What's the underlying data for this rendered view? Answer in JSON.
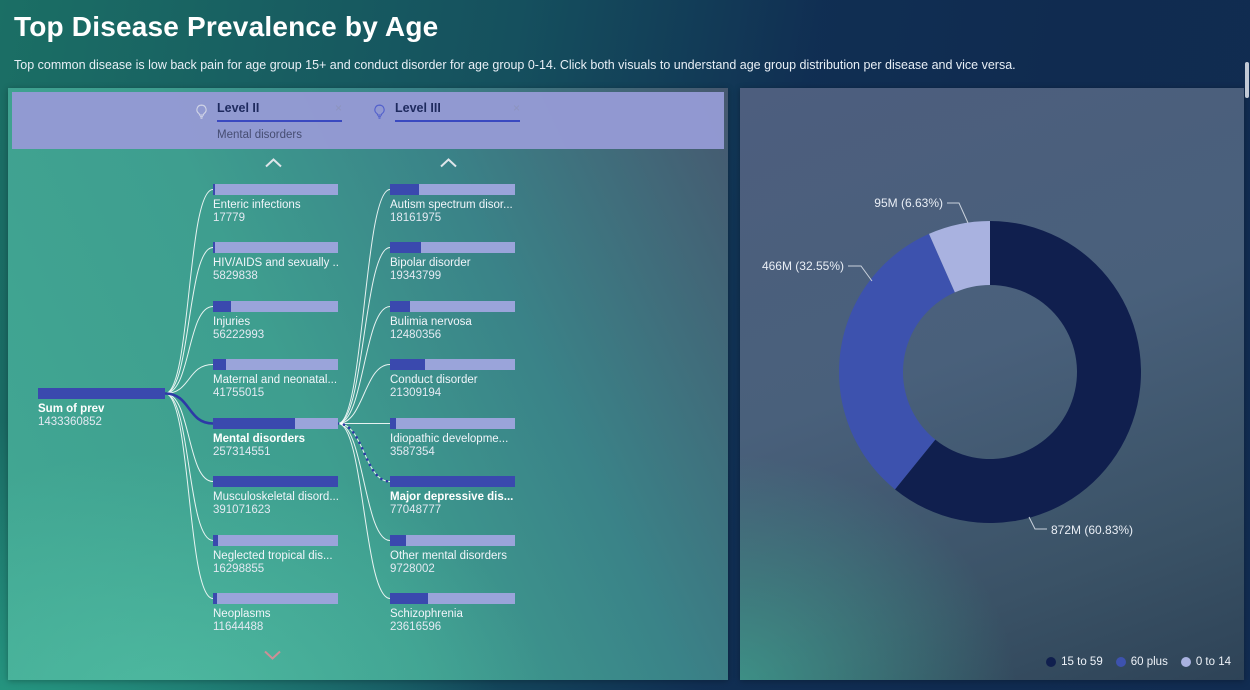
{
  "header": {
    "title": "Top Disease Prevalence by Age",
    "subtitle": "Top common disease is low back pain for age group 15+ and conduct disorder for age group 0-14. Click both visuals to understand age group distribution per disease and vice versa."
  },
  "decomposition_tree": {
    "fields": [
      {
        "label": "Level II",
        "selected_value": "Mental disorders",
        "clear_label": "×"
      },
      {
        "label": "Level III",
        "selected_value": "",
        "clear_label": "×"
      }
    ],
    "root": {
      "label": "Sum of prev",
      "value": 1433360852
    },
    "level2_nodes": [
      {
        "label": "Enteric infections",
        "value": 17779
      },
      {
        "label": "HIV/AIDS and sexually ...",
        "value": 5829838
      },
      {
        "label": "Injuries",
        "value": 56222993
      },
      {
        "label": "Maternal and neonatal...",
        "value": 41755015
      },
      {
        "label": "Mental disorders",
        "value": 257314551,
        "selected": true
      },
      {
        "label": "Musculoskeletal disord...",
        "value": 391071623
      },
      {
        "label": "Neglected tropical dis...",
        "value": 16298855
      },
      {
        "label": "Neoplasms",
        "value": 11644488
      }
    ],
    "level3_nodes": [
      {
        "label": "Autism spectrum disor...",
        "value": 18161975
      },
      {
        "label": "Bipolar disorder",
        "value": 19343799
      },
      {
        "label": "Bulimia nervosa",
        "value": 12480356
      },
      {
        "label": "Conduct disorder",
        "value": 21309194
      },
      {
        "label": "Idiopathic developme...",
        "value": 3587354
      },
      {
        "label": "Major depressive dis...",
        "value": 77048777,
        "selected": true
      },
      {
        "label": "Other mental disorders",
        "value": 9728002
      },
      {
        "label": "Schizophrenia",
        "value": 23616596
      }
    ],
    "colors": {
      "bar_fill": "#3a49ae",
      "bar_rest": "#9aa4da",
      "selected_path": "#2d3aa6"
    }
  },
  "chart_data": {
    "type": "pie",
    "variant": "donut",
    "categories": [
      "15 to 59",
      "60 plus",
      "0 to 14"
    ],
    "values": [
      "872M",
      "466M",
      "95M"
    ],
    "percentages": [
      60.83,
      32.55,
      6.63
    ],
    "data_labels": [
      "872M (60.83%)",
      "466M (32.55%)",
      "95M (6.63%)"
    ],
    "colors": [
      "#101f4e",
      "#3d52ae",
      "#a9b2e0"
    ],
    "legend": [
      "15 to 59",
      "60 plus",
      "0 to 14"
    ],
    "legend_position": "bottom-right"
  }
}
